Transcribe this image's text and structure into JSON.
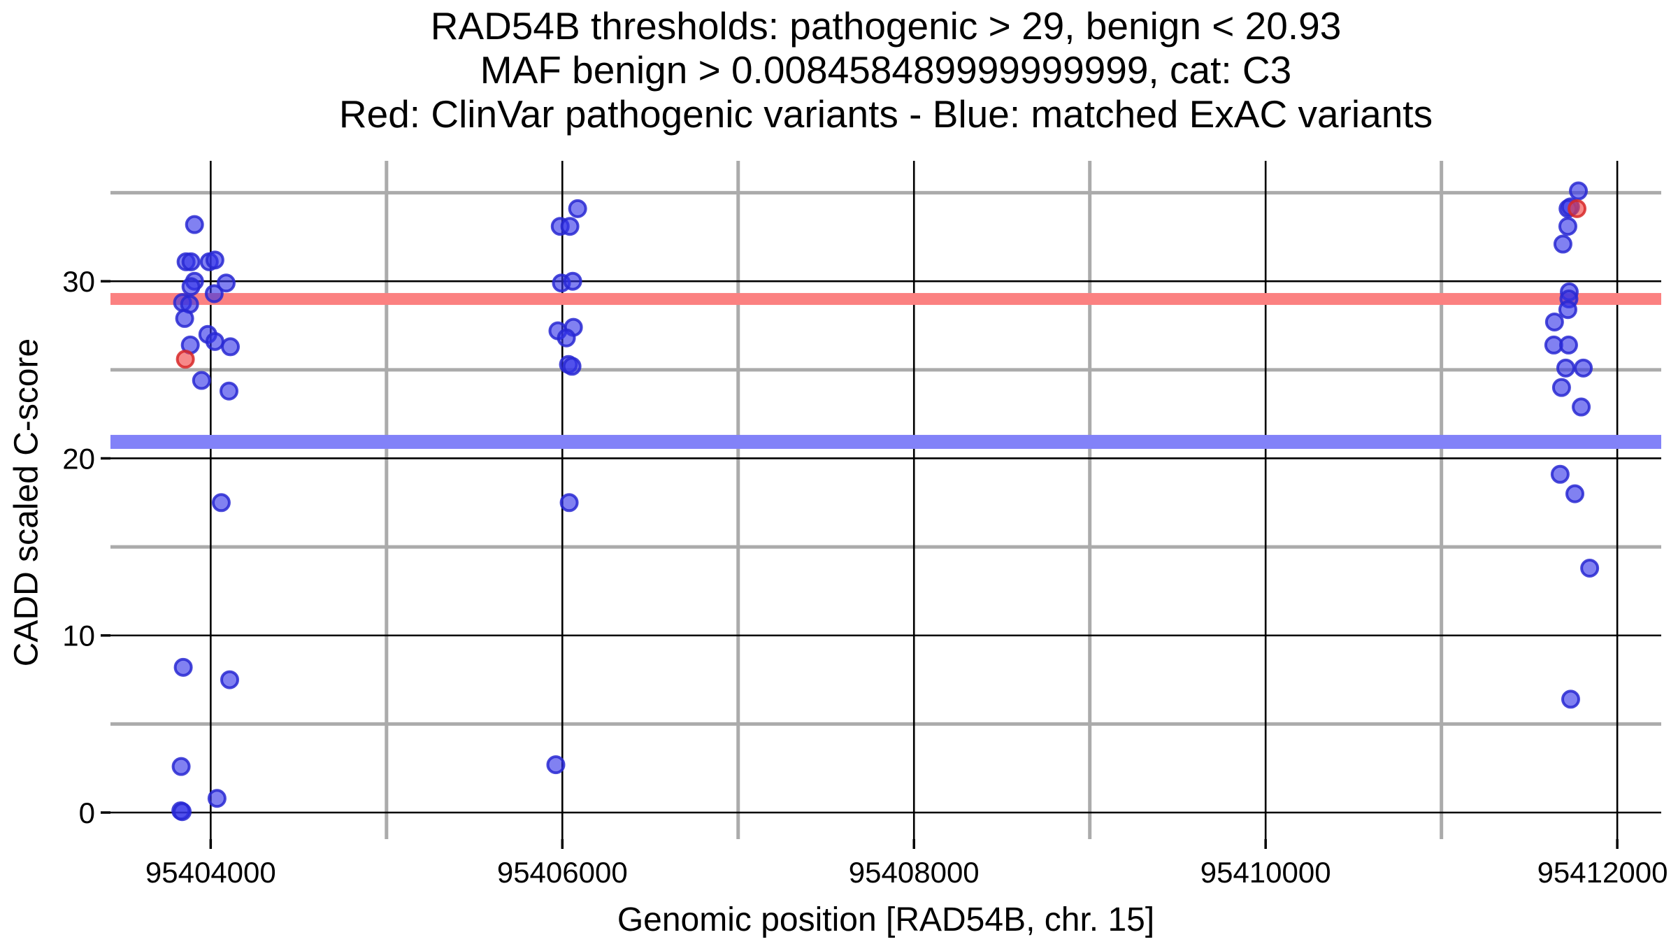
{
  "title": {
    "line1": "RAD54B thresholds: pathogenic > 29, benign < 20.93",
    "line2": "MAF benign > 0.008458489999999999, cat: C3",
    "line3": "Red: ClinVar pathogenic variants - Blue: matched ExAC variants"
  },
  "colors": {
    "background": "#ffffff",
    "major_grid": "#000000",
    "minor_grid": "#ababab",
    "tick": "#000000",
    "text": "#000000",
    "pathogenic_band": "#fb8181",
    "benign_band": "#8282f8",
    "blue_point_fill": "#3333e8",
    "blue_point_stroke": "#2828d2",
    "red_point_fill": "#f04040",
    "red_point_stroke": "#d72828"
  },
  "chart_data": {
    "type": "scatter",
    "title": "RAD54B thresholds: pathogenic > 29, benign < 20.93 | MAF benign > 0.008458489999999999, cat: C3 | Red: ClinVar pathogenic variants - Blue: matched ExAC variants",
    "xlabel": "Genomic position [RAD54B, chr. 15]",
    "ylabel": "CADD scaled C-score",
    "xlim": [
      95403430,
      95412250
    ],
    "ylim": [
      -1.5,
      36.8
    ],
    "x_major_ticks": [
      95404000,
      95406000,
      95408000,
      95410000,
      95412000
    ],
    "x_tick_labels": [
      "95404000",
      "95406000",
      "95408000",
      "95410000",
      "95412000"
    ],
    "x_minor_ticks": [
      95405000,
      95407000,
      95409000,
      95411000
    ],
    "y_major_ticks": [
      0,
      10,
      20,
      30
    ],
    "y_tick_labels": [
      "0",
      "10",
      "20",
      "30"
    ],
    "y_minor_ticks": [
      5,
      15,
      25,
      35
    ],
    "grid": true,
    "legend_position": "none",
    "thresholds": [
      {
        "name": "pathogenic-threshold-band",
        "y": 29,
        "color": "#fb8181",
        "thickness_px": 17
      },
      {
        "name": "benign-threshold-band",
        "y": 20.93,
        "color": "#8282f8",
        "thickness_px": 20
      }
    ],
    "series": [
      {
        "name": "matched ExAC variants",
        "marker": "circle",
        "points": [
          [
            95403908,
            33.2
          ],
          [
            95403860,
            31.1
          ],
          [
            95403888,
            31.1
          ],
          [
            95403992,
            31.1
          ],
          [
            95404024,
            31.2
          ],
          [
            95403908,
            30.0
          ],
          [
            95404088,
            29.9
          ],
          [
            95403888,
            29.7
          ],
          [
            95404020,
            29.3
          ],
          [
            95403840,
            28.8
          ],
          [
            95403880,
            28.7
          ],
          [
            95403852,
            27.9
          ],
          [
            95403984,
            27.0
          ],
          [
            95404024,
            26.6
          ],
          [
            95403884,
            26.4
          ],
          [
            95404112,
            26.3
          ],
          [
            95403948,
            24.4
          ],
          [
            95404104,
            23.8
          ],
          [
            95404060,
            17.5
          ],
          [
            95403844,
            8.2
          ],
          [
            95404108,
            7.5
          ],
          [
            95403832,
            2.6
          ],
          [
            95404036,
            0.8
          ],
          [
            95403830,
            0.1
          ],
          [
            95403838,
            0.05
          ],
          [
            95406087,
            34.1
          ],
          [
            95405988,
            33.1
          ],
          [
            95406043,
            33.1
          ],
          [
            95405995,
            29.9
          ],
          [
            95406059,
            30.0
          ],
          [
            95405975,
            27.2
          ],
          [
            95406063,
            27.4
          ],
          [
            95406023,
            26.8
          ],
          [
            95406035,
            25.3
          ],
          [
            95406055,
            25.2
          ],
          [
            95406039,
            17.5
          ],
          [
            95405963,
            2.7
          ],
          [
            95411779,
            35.1
          ],
          [
            95411720,
            34.1
          ],
          [
            95411734,
            34.2
          ],
          [
            95411719,
            33.1
          ],
          [
            95411691,
            32.1
          ],
          [
            95411727,
            29.4
          ],
          [
            95411725,
            29.0
          ],
          [
            95411719,
            28.4
          ],
          [
            95411643,
            27.7
          ],
          [
            95411639,
            26.4
          ],
          [
            95411723,
            26.4
          ],
          [
            95411707,
            25.1
          ],
          [
            95411807,
            25.1
          ],
          [
            95411683,
            24.0
          ],
          [
            95411795,
            22.9
          ],
          [
            95411675,
            19.1
          ],
          [
            95411759,
            18.0
          ],
          [
            95411843,
            13.8
          ],
          [
            95411735,
            6.4
          ]
        ]
      },
      {
        "name": "ClinVar pathogenic variants",
        "marker": "circle",
        "points": [
          [
            95403856,
            25.6
          ],
          [
            95411771,
            34.1
          ]
        ]
      }
    ]
  }
}
